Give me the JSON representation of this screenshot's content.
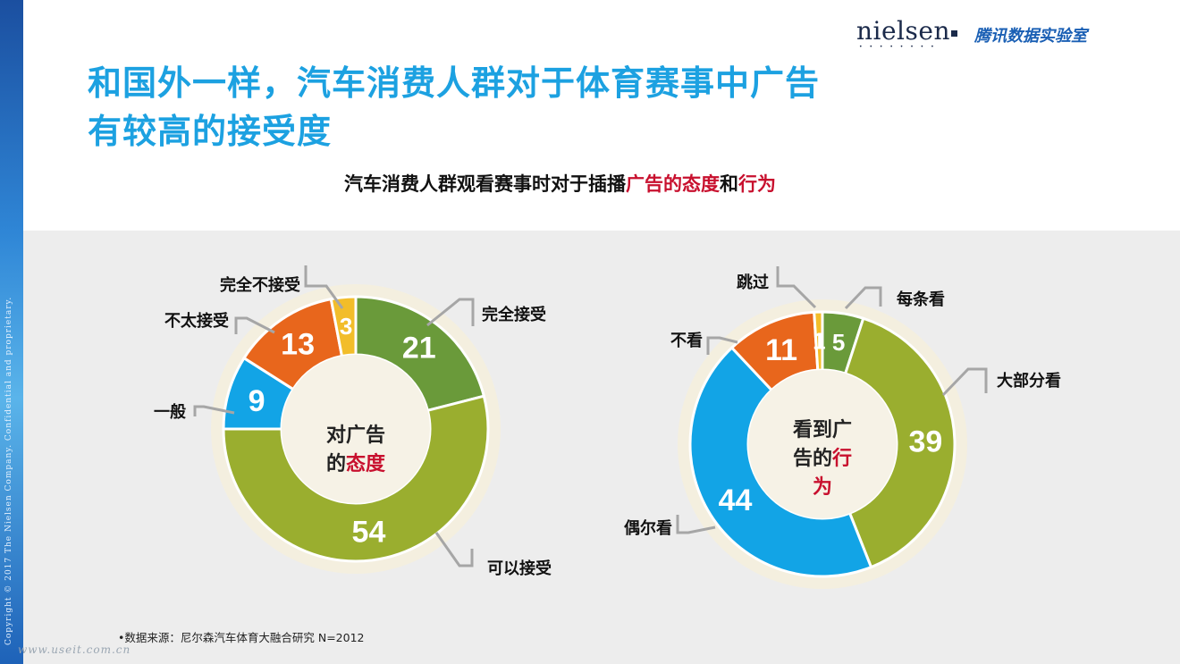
{
  "copyright": "Copyright © 2017 The Nielsen Company. Confidential and proprietary.",
  "logo": {
    "nielsen": "nielsen",
    "nielsen_dots": "• • • • • • • •",
    "partner": "腾讯数据实验室"
  },
  "title_line1": "和国外一样，汽车消费人群对于体育赛事中广告",
  "title_line2": "有较高的接受度",
  "subtitle": {
    "plain1": "汽车消费人群观看赛事时对于插播",
    "red1": "广告的态度",
    "plain2": "和",
    "red2": "行为"
  },
  "colors": {
    "green": "#6a9a3a",
    "olive": "#9aae2f",
    "blue": "#12a4e6",
    "orange": "#e8661c",
    "yellow": "#f2bd2a",
    "title_blue": "#1ca1e1",
    "accent_red": "#c8102e",
    "panel_bg": "#ededed"
  },
  "chart_data": [
    {
      "type": "pie",
      "donut": true,
      "center_label": {
        "plain1": "对广告",
        "plain2": "的",
        "red": "态度"
      },
      "slices": [
        {
          "label": "完全接受",
          "value": 21,
          "color": "#6a9a3a"
        },
        {
          "label": "可以接受",
          "value": 54,
          "color": "#9aae2f"
        },
        {
          "label": "一般",
          "value": 9,
          "color": "#12a4e6"
        },
        {
          "label": "不太接受",
          "value": 13,
          "color": "#e8661c"
        },
        {
          "label": "完全不接受",
          "value": 3,
          "color": "#f2bd2a"
        }
      ]
    },
    {
      "type": "pie",
      "donut": true,
      "center_label": {
        "plain1": "看到广",
        "plain2": "告的",
        "red1": "行",
        "red2": "为"
      },
      "slices": [
        {
          "label": "每条看",
          "value": 5,
          "color": "#6a9a3a"
        },
        {
          "label": "大部分看",
          "value": 39,
          "color": "#9aae2f"
        },
        {
          "label": "偶尔看",
          "value": 44,
          "color": "#12a4e6"
        },
        {
          "label": "不看",
          "value": 11,
          "color": "#e8661c"
        },
        {
          "label": "跳过",
          "value": 1,
          "color": "#f2bd2a"
        }
      ]
    }
  ],
  "source": "•数据来源：尼尔森汽车体育大融合研究 N=2012",
  "watermark": "www.useit.com.cn"
}
